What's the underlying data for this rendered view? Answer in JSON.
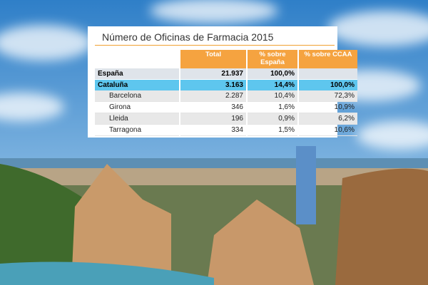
{
  "title": "Número de Oficinas de Farmacia 2015",
  "table": {
    "header": [
      "Total",
      "% sobre España",
      "% sobre CCAA"
    ],
    "rows": [
      {
        "label": "España",
        "cells": [
          "21.937",
          "100,0%"
        ]
      },
      {
        "label": "Cataluña",
        "cells": [
          "3.163",
          "14,4%",
          "100,0%"
        ]
      },
      {
        "label": "Barcelona",
        "cells": [
          "2.287",
          "10,4%",
          "72,3%"
        ]
      },
      {
        "label": "Girona",
        "cells": [
          "346",
          "1,6%",
          "10,9%"
        ]
      },
      {
        "label": "Lleida",
        "cells": [
          "196",
          "0,9%",
          "6,2%"
        ]
      },
      {
        "label": "Tarragona",
        "cells": [
          "334",
          "1,5%",
          "10,6%"
        ]
      }
    ]
  }
}
